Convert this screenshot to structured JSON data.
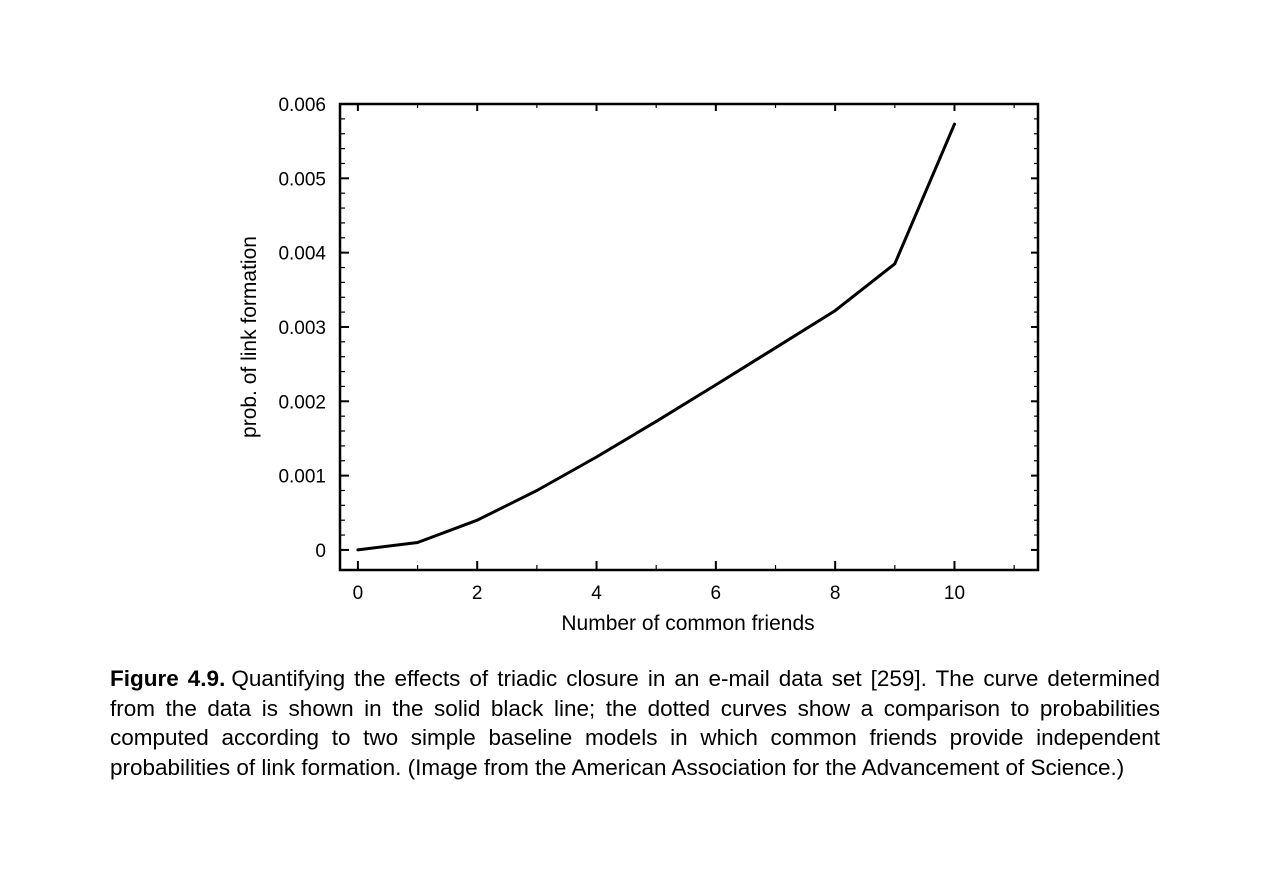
{
  "chart_data": {
    "type": "line",
    "title": "",
    "xlabel": "Number of common friends",
    "ylabel": "prob. of link formation",
    "xlim": [
      -0.3,
      11.4
    ],
    "ylim": [
      -0.00027,
      0.006
    ],
    "x_ticks": [
      0,
      2,
      4,
      6,
      8,
      10
    ],
    "x_tick_labels": [
      "0",
      "2",
      "4",
      "6",
      "8",
      "10"
    ],
    "y_ticks": [
      0,
      0.001,
      0.002,
      0.003,
      0.004,
      0.005,
      0.006
    ],
    "y_tick_labels": [
      "0",
      "0.001",
      "0.002",
      "0.003",
      "0.004",
      "0.005",
      "0.006"
    ],
    "grid": false,
    "legend": "none",
    "series": [
      {
        "color": "#000000",
        "x": [
          0,
          1,
          2,
          3,
          4,
          5,
          6,
          7,
          8,
          9,
          10
        ],
        "y": [
          0.0,
          0.0001,
          0.0004,
          0.0008,
          0.00125,
          0.00173,
          0.00222,
          0.00272,
          0.00322,
          0.00385,
          0.00573
        ]
      }
    ]
  },
  "caption": {
    "label": "Figure 4.9.",
    "text": "Quantifying the effects of triadic closure in an e-mail data set [259]. The curve determined from the data is shown in the solid black line; the dotted curves show a comparison to probabilities computed according to two simple baseline models in which common friends provide independent probabilities of link formation. (Image from the American Association for the Advancement of Science.)"
  }
}
